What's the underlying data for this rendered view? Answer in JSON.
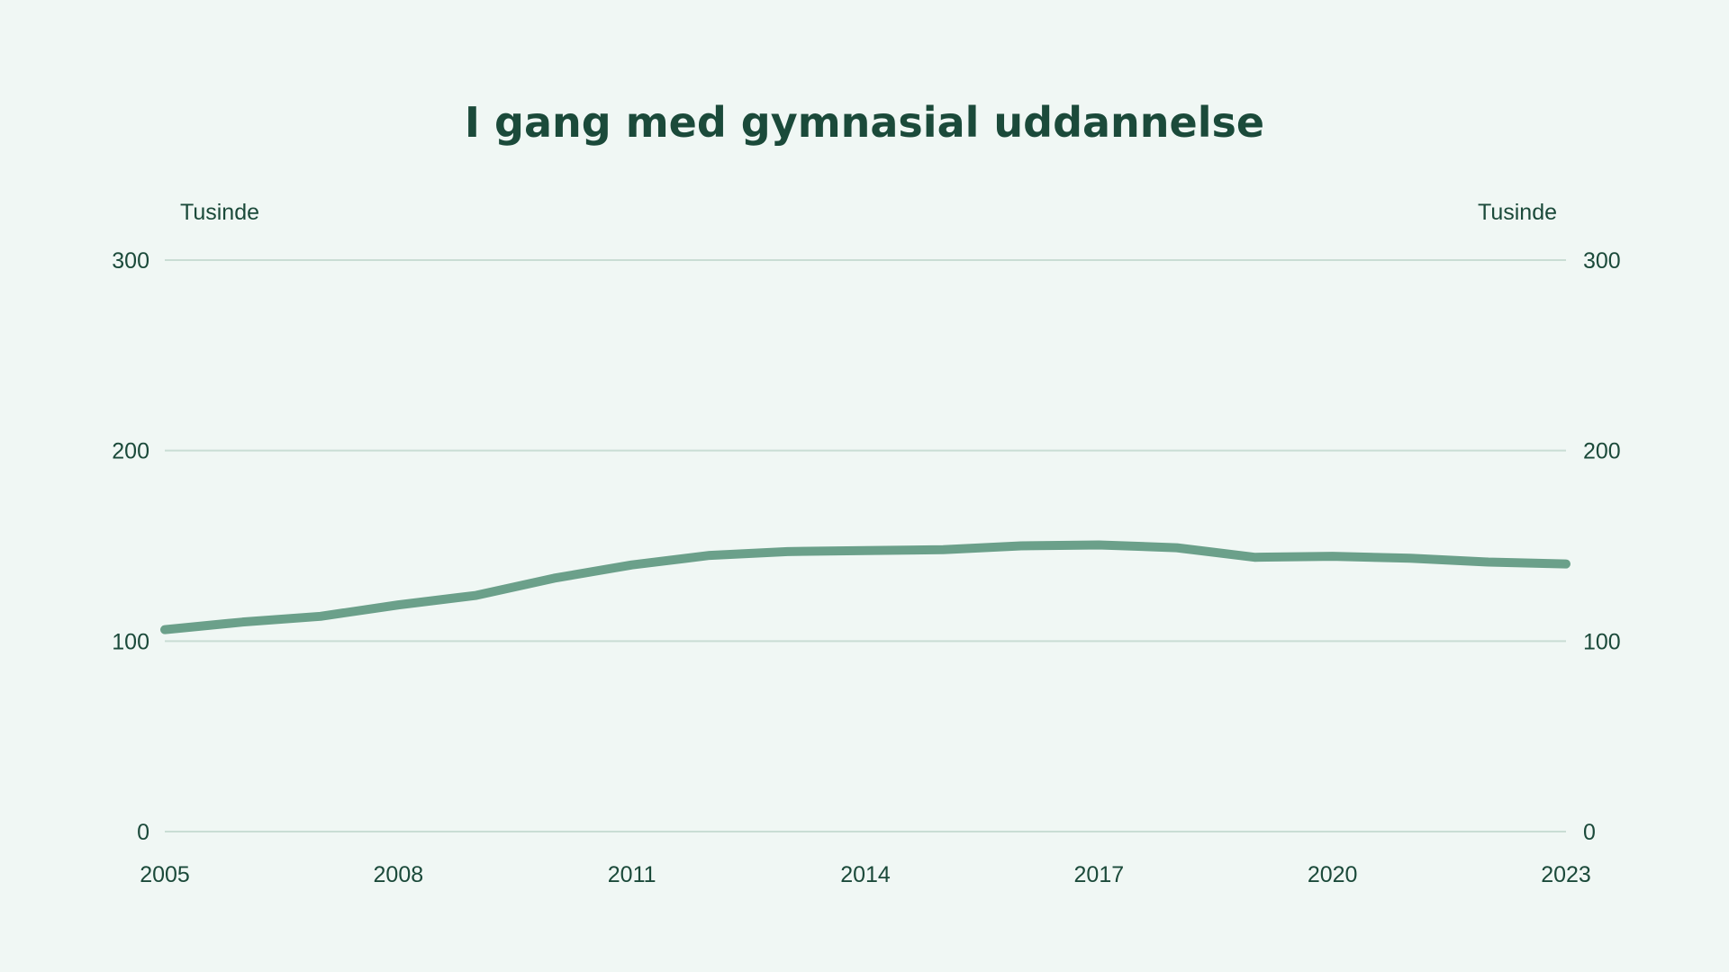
{
  "chart_data": {
    "type": "line",
    "title": "I gang med gymnasial uddannelse",
    "y_unit_left": "Tusinde",
    "y_unit_right": "Tusinde",
    "ylim": [
      0,
      300
    ],
    "yticks": [
      0,
      100,
      200,
      300
    ],
    "xlim": [
      2005,
      2023
    ],
    "xticks": [
      2005,
      2008,
      2011,
      2014,
      2017,
      2020,
      2023
    ],
    "grid": true,
    "legend": "none",
    "color": "#6ba08a",
    "series": [
      {
        "x": [
          2005,
          2006,
          2007,
          2008,
          2009,
          2010,
          2011,
          2012,
          2013,
          2014,
          2015,
          2016,
          2017,
          2018,
          2019,
          2020,
          2021,
          2022,
          2023
        ],
        "values": [
          106,
          110,
          113,
          119,
          124,
          133,
          140,
          145,
          147,
          147.5,
          148,
          150,
          150.5,
          149,
          144,
          144.5,
          143.5,
          141.5,
          140.5
        ]
      }
    ]
  }
}
